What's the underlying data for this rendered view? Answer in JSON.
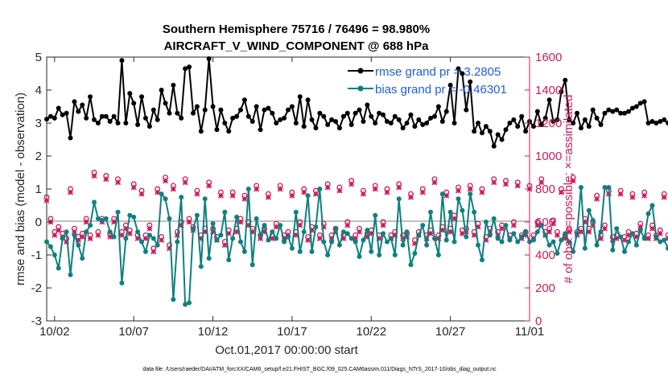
{
  "colors": {
    "rmse": "#000000",
    "bias": "#0e8080",
    "obs": "#d11a5a",
    "zero_line": "#c0c0c0",
    "legend_text": "#1f5fd6"
  },
  "chart_data": {
    "type": "line",
    "title": [
      "Southern Hemisphere 75716 / 76496 = 98.980%",
      "AIRCRAFT_V_WIND_COMPONENT @ 688 hPa"
    ],
    "xlabel": "Oct.01,2017 00:00:00 start",
    "ylabel_left": "rmse and bias (model - observation)",
    "ylabel_right": "# of obs: o=possible; ×=assimilated",
    "footnote": "data file: /Users/raeder/DAI/ATM_forcXX/CAM6_setup/f.e21.FHIST_BGC.f09_025.CAM6assim.011/Diags_NTrS_2017-10/obs_diag_output.nc",
    "xlim": [
      1.5,
      32.0
    ],
    "ylim_left": [
      -3,
      5
    ],
    "ylim_right": [
      0,
      1600
    ],
    "x_ticks": [
      2,
      7,
      12,
      17,
      22,
      27,
      32
    ],
    "x_tick_labels": [
      "10/02",
      "10/07",
      "10/12",
      "10/17",
      "10/22",
      "10/27",
      "11/01"
    ],
    "y_ticks_left": [
      "-3",
      "-2",
      "-1",
      "0",
      "1",
      "2",
      "3",
      "4",
      "5"
    ],
    "y_ticks_right": [
      "0",
      "200",
      "400",
      "600",
      "800",
      "1000",
      "1200",
      "1400",
      "1600"
    ],
    "x_start": 1.5,
    "x_step": 0.25,
    "legend": [
      {
        "label": "rmse grand pr = 3.2805"
      },
      {
        "label": "bias grand pr = -0.46301"
      }
    ],
    "series": [
      {
        "name": "rmse",
        "axis": "left",
        "values": [
          3.12,
          3.2,
          3.15,
          3.45,
          3.25,
          3.3,
          2.55,
          3.65,
          3.35,
          3.55,
          3.15,
          3.8,
          3.1,
          3.0,
          3.2,
          3.2,
          3.05,
          3.2,
          3.0,
          4.9,
          3.0,
          3.9,
          3.6,
          2.95,
          3.8,
          3.15,
          2.9,
          3.4,
          3.1,
          4.0,
          3.6,
          3.3,
          4.15,
          3.3,
          3.15,
          4.65,
          4.7,
          3.3,
          3.5,
          2.75,
          3.4,
          4.95,
          3.5,
          2.8,
          3.4,
          3.0,
          2.75,
          3.15,
          3.2,
          3.4,
          3.7,
          3.2,
          3.05,
          3.5,
          2.8,
          3.4,
          3.45,
          3.3,
          3.0,
          3.1,
          3.15,
          3.4,
          3.5,
          3.0,
          3.8,
          2.9,
          3.7,
          3.1,
          2.85,
          3.3,
          3.2,
          2.95,
          3.1,
          3.05,
          2.85,
          3.2,
          3.3,
          2.95,
          3.3,
          3.4,
          3.05,
          3.55,
          3.2,
          3.0,
          3.3,
          3.25,
          3.05,
          3.0,
          3.2,
          3.1,
          2.85,
          3.0,
          3.25,
          2.9,
          3.1,
          2.95,
          3.0,
          3.15,
          3.2,
          3.5,
          3.05,
          3.35,
          4.15,
          3.0,
          4.65,
          4.5,
          3.4,
          4.25,
          2.75,
          3.0,
          2.7,
          2.9,
          2.75,
          2.3,
          2.65,
          2.5,
          2.8,
          3.0,
          3.1,
          2.9,
          3.2,
          2.75,
          3.05,
          2.9,
          3.35,
          2.95,
          3.15,
          3.7,
          3.05,
          3.1,
          3.95,
          4.3,
          3.1,
          3.0,
          3.3,
          2.85,
          3.1,
          2.9,
          3.4,
          3.15,
          2.95,
          3.3,
          3.4,
          3.35,
          3.4,
          3.3,
          3.3,
          3.35,
          3.45,
          3.5,
          3.6,
          3.65,
          3.0,
          3.05,
          3.0,
          3.05,
          3.1,
          3.0,
          2.95
        ]
      },
      {
        "name": "bias",
        "axis": "left",
        "values": [
          -0.6,
          -0.75,
          -1.0,
          -1.4,
          -0.5,
          -0.3,
          -1.6,
          -0.4,
          -0.7,
          -1.1,
          -0.3,
          -0.1,
          0.6,
          0.1,
          0.05,
          0.1,
          -0.3,
          -0.45,
          0.3,
          -1.85,
          -0.5,
          0.2,
          0.15,
          -0.3,
          -0.6,
          -0.9,
          -0.4,
          -0.5,
          -0.7,
          0.85,
          0.7,
          0.1,
          -2.35,
          -0.6,
          0.75,
          -2.5,
          -2.45,
          -0.2,
          0.2,
          -1.35,
          0.7,
          -1.1,
          -0.05,
          -0.55,
          -0.4,
          0.3,
          -1.15,
          -0.5,
          0.15,
          -0.6,
          -0.9,
          1.0,
          -1.3,
          0.1,
          -0.4,
          -0.1,
          -0.55,
          -0.3,
          -0.5,
          -0.1,
          -0.6,
          -0.45,
          -0.8,
          0.3,
          -0.9,
          -0.3,
          0.8,
          -0.9,
          -0.15,
          1.0,
          -0.6,
          -1.0,
          -0.6,
          -0.2,
          -0.7,
          -0.3,
          -0.35,
          -0.5,
          -0.6,
          -1.05,
          -0.55,
          -0.25,
          -0.9,
          0.2,
          -1.0,
          -0.35,
          -0.6,
          -0.5,
          -1.0,
          0.7,
          -0.7,
          -0.3,
          -1.3,
          -0.95,
          -0.4,
          -0.1,
          -0.7,
          0.3,
          -0.5,
          -1.0,
          0.85,
          -0.55,
          0.3,
          -0.6,
          0.7,
          0.35,
          -0.45,
          0.85,
          0.3,
          -0.7,
          -1.15,
          0.0,
          -0.4,
          0.1,
          -0.5,
          -0.6,
          -0.1,
          -0.55,
          -0.35,
          -0.6,
          -0.45,
          -0.3,
          -0.6,
          -0.55,
          -0.3,
          -0.1,
          -0.4,
          -0.7,
          -0.6,
          -0.95,
          -0.55,
          -0.35,
          -0.6,
          -0.9,
          -0.35,
          1.05,
          -0.8,
          0.35,
          0.05,
          -0.7,
          -0.3,
          1.05,
          1.05,
          -0.85,
          -0.2,
          -0.45,
          -0.9,
          -0.6,
          -0.35,
          -0.7,
          -0.25,
          -0.5,
          0.25,
          0.5,
          -0.45,
          -0.6,
          -0.55,
          -0.8,
          -0.25,
          0.15
        ]
      },
      {
        "name": "obs_possible",
        "axis": "right",
        "values": [
          750,
          620,
          540,
          570,
          530,
          500,
          800,
          560,
          510,
          530,
          620,
          520,
          900,
          540,
          620,
          880,
          530,
          620,
          860,
          540,
          580,
          550,
          830,
          520,
          790,
          520,
          580,
          440,
          800,
          510,
          870,
          460,
          820,
          540,
          600,
          860,
          620,
          570,
          790,
          520,
          560,
          840,
          560,
          510,
          780,
          480,
          550,
          780,
          560,
          620,
          760,
          600,
          560,
          820,
          520,
          560,
          770,
          520,
          590,
          820,
          520,
          540,
          780,
          540,
          600,
          800,
          510,
          570,
          790,
          520,
          590,
          830,
          520,
          560,
          810,
          520,
          600,
          850,
          520,
          560,
          790,
          530,
          550,
          820,
          520,
          600,
          800,
          520,
          540,
          830,
          520,
          530,
          770,
          490,
          540,
          800,
          520,
          550,
          860,
          520,
          570,
          780,
          560,
          640,
          810,
          550,
          560,
          820,
          540,
          590,
          800,
          510,
          560,
          860,
          540,
          580,
          850,
          520,
          600,
          840,
          520,
          540,
          820,
          520,
          600,
          860,
          540,
          560,
          610,
          540,
          800,
          520,
          560,
          870,
          540,
          560,
          620,
          560,
          600,
          760,
          520,
          580,
          790,
          510,
          520,
          790,
          510,
          540,
          770,
          530,
          590,
          780,
          520,
          580,
          520,
          550,
          770,
          520,
          570,
          530
        ]
      },
      {
        "name": "obs_assimilated",
        "axis": "right",
        "values": [
          730,
          600,
          520,
          550,
          510,
          480,
          780,
          540,
          490,
          510,
          600,
          500,
          880,
          520,
          600,
          860,
          510,
          600,
          840,
          520,
          560,
          530,
          810,
          500,
          770,
          500,
          560,
          420,
          780,
          490,
          850,
          440,
          800,
          520,
          580,
          840,
          600,
          550,
          770,
          500,
          540,
          820,
          540,
          490,
          760,
          460,
          530,
          760,
          540,
          600,
          740,
          580,
          540,
          800,
          500,
          540,
          750,
          500,
          570,
          800,
          500,
          520,
          760,
          520,
          580,
          780,
          490,
          550,
          770,
          500,
          570,
          810,
          500,
          540,
          790,
          500,
          580,
          830,
          500,
          540,
          770,
          510,
          530,
          800,
          500,
          580,
          780,
          500,
          520,
          810,
          500,
          510,
          750,
          470,
          520,
          780,
          500,
          530,
          840,
          500,
          550,
          760,
          540,
          620,
          790,
          530,
          540,
          800,
          520,
          570,
          780,
          490,
          540,
          840,
          520,
          560,
          830,
          500,
          580,
          820,
          500,
          520,
          800,
          500,
          580,
          840,
          520,
          540,
          590,
          520,
          780,
          500,
          540,
          850,
          520,
          540,
          600,
          540,
          580,
          740,
          500,
          560,
          770,
          490,
          500,
          770,
          490,
          520,
          750,
          510,
          570,
          760,
          500,
          560,
          500,
          530,
          750,
          500,
          550,
          510
        ]
      }
    ]
  }
}
